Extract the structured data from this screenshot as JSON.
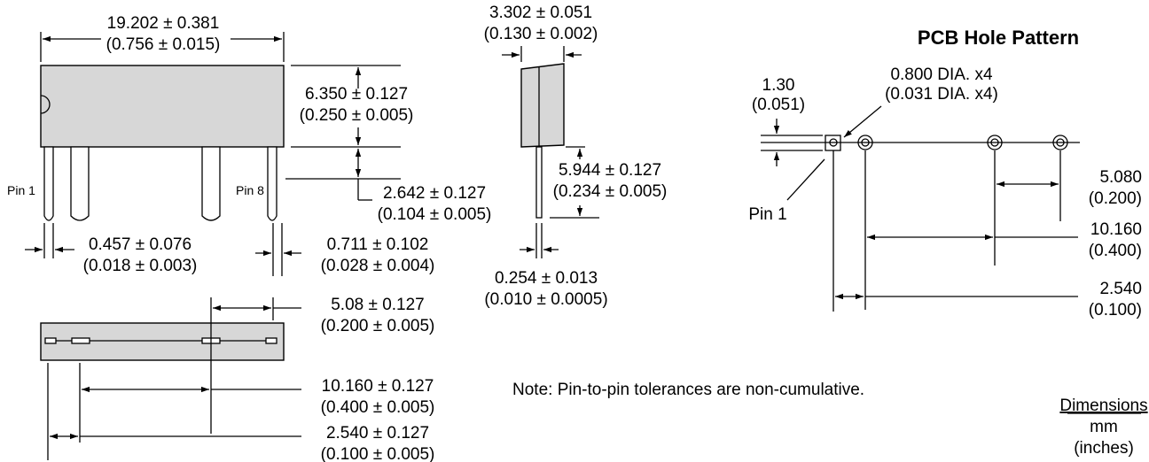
{
  "pcb_title": "PCB Hole Pattern",
  "note": "Note: Pin-to-pin tolerances are non-cumulative.",
  "units": {
    "heading": "Dimensions",
    "primary": "mm",
    "secondary": "(inches)"
  },
  "pin_labels": {
    "pin1": "Pin 1",
    "pin8": "Pin 8",
    "pcb_pin1": "Pin 1"
  },
  "dims": {
    "length_mm": "19.202 ± 0.381",
    "length_in": "(0.756 ± 0.015)",
    "width_mm": "3.302 ± 0.051",
    "width_in": "(0.130 ± 0.002)",
    "height_mm": "6.350 ± 0.127",
    "height_in": "(0.250 ± 0.005)",
    "standoff_mm": "2.642 ± 0.127",
    "standoff_in": "(0.104 ± 0.005)",
    "pin_length_mm": "5.944 ± 0.127",
    "pin_length_in": "(0.234 ± 0.005)",
    "pin_width_mm": "0.457 ± 0.076",
    "pin_width_in": "(0.018 ± 0.003)",
    "pin_width2_mm": "0.711 ± 0.102",
    "pin_width2_in": "(0.028 ± 0.004)",
    "pin_thick_mm": "0.254 ± 0.013",
    "pin_thick_in": "(0.010 ± 0.0005)",
    "pitch_a_mm": "5.08 ± 0.127",
    "pitch_a_in": "(0.200 ± 0.005)",
    "pitch_b_mm": "10.160 ± 0.127",
    "pitch_b_in": "(0.400 ± 0.005)",
    "pitch_c_mm": "2.540 ± 0.127",
    "pitch_c_in": "(0.100 ± 0.005)"
  },
  "pcb_dims": {
    "offset_mm": "1.30",
    "offset_in": "(0.051)",
    "hole_mm": "0.800 DIA. x4",
    "hole_in": "(0.031 DIA. x4)",
    "a_mm": "5.080",
    "a_in": "(0.200)",
    "b_mm": "10.160",
    "b_in": "(0.400)",
    "c_mm": "2.540",
    "c_in": "(0.100)"
  }
}
